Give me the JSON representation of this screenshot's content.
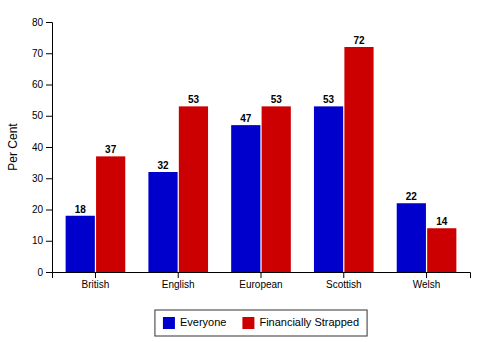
{
  "chart_data": {
    "type": "bar",
    "ylabel": "Per Cent",
    "categories": [
      "British",
      "English",
      "European",
      "Scottish",
      "Welsh"
    ],
    "series": [
      {
        "name": "Everyone",
        "color": "#0000CC",
        "values": [
          18,
          32,
          47,
          53,
          22
        ]
      },
      {
        "name": "Financially Strapped",
        "color": "#CC0000",
        "values": [
          37,
          53,
          53,
          72,
          14
        ]
      }
    ],
    "ylim": [
      0,
      80
    ],
    "yticks": [
      0,
      10,
      20,
      30,
      40,
      50,
      60,
      70,
      80
    ],
    "grid": false,
    "data_labels": true,
    "legend": "bottom"
  }
}
